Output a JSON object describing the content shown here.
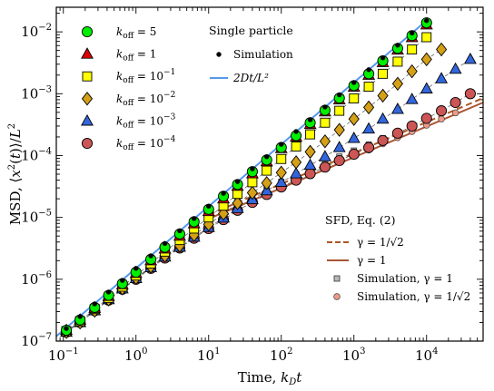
{
  "chart_data": {
    "type": "scatter",
    "x_scale": "log",
    "y_scale": "log",
    "xlim": [
      0.08,
      60000
    ],
    "ylim": [
      1e-07,
      0.025
    ],
    "xlabel": "Time, k_D t",
    "ylabel": "MSD, ⟨x²(t)⟩/L²",
    "x_ticks": [
      {
        "base": "10",
        "exp": "−1",
        "value": 0.1
      },
      {
        "base": "10",
        "exp": "0",
        "value": 1
      },
      {
        "base": "10",
        "exp": "1",
        "value": 10
      },
      {
        "base": "10",
        "exp": "2",
        "value": 100
      },
      {
        "base": "10",
        "exp": "3",
        "value": 1000
      },
      {
        "base": "10",
        "exp": "4",
        "value": 10000
      }
    ],
    "y_ticks": [
      {
        "base": "10",
        "exp": "−7",
        "value": 1e-07
      },
      {
        "base": "10",
        "exp": "−6",
        "value": 1e-06
      },
      {
        "base": "10",
        "exp": "−5",
        "value": 1e-05
      },
      {
        "base": "10",
        "exp": "−4",
        "value": 0.0001
      },
      {
        "base": "10",
        "exp": "−3",
        "value": 0.001
      },
      {
        "base": "10",
        "exp": "−2",
        "value": 0.01
      }
    ],
    "legend_left": [
      {
        "label": "k_off = 5"
      },
      {
        "label": "k_off = 1"
      },
      {
        "label": "k_off = 10⁻¹"
      },
      {
        "label": "k_off = 10⁻²"
      },
      {
        "label": "k_off = 10⁻³"
      },
      {
        "label": "k_off = 10⁻⁴"
      }
    ],
    "legend_single": {
      "header": "Single particle",
      "items": [
        {
          "label": "Simulation"
        },
        {
          "label": "2Dt/L²"
        }
      ]
    },
    "legend_sfd": {
      "header": "SFD, Eq. (2)",
      "items": [
        {
          "label": "γ = 1/√2"
        },
        {
          "label": "γ = 1"
        },
        {
          "label": "Simulation, γ = 1"
        },
        {
          "label": "Simulation, γ = 1/√2"
        }
      ]
    },
    "colors": {
      "koff_5": "#00ee00",
      "koff_1": "#dd0000",
      "koff_1e-1": "#ffff00",
      "koff_1e-2": "#d4a017",
      "koff_1e-3": "#3366dd",
      "koff_1e-4": "#cc5555",
      "single_sim": "#000000",
      "single_line": "#5599ee",
      "sfd_dashed": "#aa5522",
      "sfd_solid": "#aa5533",
      "sim_gamma1": "#b8b8b8",
      "sim_gamma_rt2": "#ee9988"
    },
    "series": [
      {
        "key": "koff_5",
        "marker": "circle",
        "points": [
          [
            0.11,
            1.5e-07
          ],
          [
            0.17,
            2.2e-07
          ],
          [
            0.27,
            3.5e-07
          ],
          [
            0.42,
            5.5e-07
          ],
          [
            0.65,
            8.5e-07
          ],
          [
            1,
            1.3e-06
          ],
          [
            1.6,
            2.1e-06
          ],
          [
            2.5,
            3.3e-06
          ],
          [
            4,
            5.4e-06
          ],
          [
            6.3,
            8.5e-06
          ],
          [
            10,
            1.35e-05
          ],
          [
            16,
            2.2e-05
          ],
          [
            25,
            3.4e-05
          ],
          [
            40,
            5.5e-05
          ],
          [
            63,
            8.5e-05
          ],
          [
            100,
            0.000135
          ],
          [
            160,
            0.00021
          ],
          [
            250,
            0.00034
          ],
          [
            400,
            0.00054
          ],
          [
            630,
            0.00085
          ],
          [
            1000,
            0.00135
          ],
          [
            1600,
            0.0021
          ],
          [
            2500,
            0.0034
          ],
          [
            4000,
            0.0054
          ],
          [
            6300,
            0.0087
          ],
          [
            10000,
            0.014
          ]
        ]
      },
      {
        "key": "koff_1",
        "marker": "triangle",
        "points": [
          [
            0.11,
            1.5e-07
          ],
          [
            0.17,
            2.2e-07
          ],
          [
            0.27,
            3.4e-07
          ],
          [
            0.42,
            5.3e-07
          ],
          [
            0.65,
            8.2e-07
          ],
          [
            1,
            1.25e-06
          ],
          [
            1.6,
            2e-06
          ],
          [
            2.5,
            3.1e-06
          ],
          [
            4,
            5e-06
          ],
          [
            6.3,
            7.9e-06
          ],
          [
            10,
            1.25e-05
          ],
          [
            16,
            2e-05
          ],
          [
            25,
            3.2e-05
          ],
          [
            40,
            5.1e-05
          ],
          [
            63,
            8e-05
          ],
          [
            100,
            0.00013
          ],
          [
            160,
            0.0002
          ],
          [
            250,
            0.00032
          ],
          [
            400,
            0.00051
          ],
          [
            630,
            0.0008
          ],
          [
            1000,
            0.00128
          ],
          [
            1600,
            0.002
          ],
          [
            2500,
            0.0032
          ],
          [
            4000,
            0.0051
          ],
          [
            6300,
            0.0081
          ],
          [
            10000,
            0.013
          ]
        ]
      },
      {
        "key": "koff_1e-1",
        "marker": "square",
        "points": [
          [
            0.11,
            1.45e-07
          ],
          [
            0.17,
            2.1e-07
          ],
          [
            0.27,
            3.3e-07
          ],
          [
            0.42,
            5e-07
          ],
          [
            0.65,
            7.6e-07
          ],
          [
            1,
            1.15e-06
          ],
          [
            1.6,
            1.8e-06
          ],
          [
            2.5,
            2.8e-06
          ],
          [
            4,
            4.3e-06
          ],
          [
            6.3,
            6.6e-06
          ],
          [
            10,
            1e-05
          ],
          [
            16,
            1.55e-05
          ],
          [
            25,
            2.4e-05
          ],
          [
            40,
            3.7e-05
          ],
          [
            63,
            5.7e-05
          ],
          [
            100,
            8.8e-05
          ],
          [
            160,
            0.00014
          ],
          [
            250,
            0.00022
          ],
          [
            400,
            0.00034
          ],
          [
            630,
            0.00053
          ],
          [
            1000,
            0.00084
          ],
          [
            1600,
            0.0013
          ],
          [
            2500,
            0.0021
          ],
          [
            4000,
            0.0033
          ],
          [
            6300,
            0.0052
          ],
          [
            10000,
            0.0082
          ]
        ]
      },
      {
        "key": "koff_1e-2",
        "marker": "diamond",
        "points": [
          [
            0.11,
            1.4e-07
          ],
          [
            0.17,
            2e-07
          ],
          [
            0.27,
            3.1e-07
          ],
          [
            0.42,
            4.7e-07
          ],
          [
            0.65,
            7.1e-07
          ],
          [
            1,
            1.05e-06
          ],
          [
            1.6,
            1.6e-06
          ],
          [
            2.5,
            2.4e-06
          ],
          [
            4,
            3.5e-06
          ],
          [
            6.3,
            5.2e-06
          ],
          [
            10,
            7.7e-06
          ],
          [
            16,
            1.15e-05
          ],
          [
            25,
            1.7e-05
          ],
          [
            40,
            2.5e-05
          ],
          [
            63,
            3.6e-05
          ],
          [
            100,
            5.3e-05
          ],
          [
            160,
            7.8e-05
          ],
          [
            250,
            0.000115
          ],
          [
            400,
            0.00017
          ],
          [
            630,
            0.00026
          ],
          [
            1000,
            0.00039
          ],
          [
            1600,
            0.0006
          ],
          [
            2500,
            0.00093
          ],
          [
            4000,
            0.00145
          ],
          [
            6300,
            0.0023
          ],
          [
            10000,
            0.0036
          ],
          [
            16000,
            0.0052
          ]
        ]
      },
      {
        "key": "koff_1e-3",
        "marker": "triangle",
        "points": [
          [
            0.11,
            1.4e-07
          ],
          [
            0.17,
            2e-07
          ],
          [
            0.27,
            3.1e-07
          ],
          [
            0.42,
            4.7e-07
          ],
          [
            0.65,
            7e-07
          ],
          [
            1,
            1.03e-06
          ],
          [
            1.6,
            1.55e-06
          ],
          [
            2.5,
            2.3e-06
          ],
          [
            4,
            3.3e-06
          ],
          [
            6.3,
            4.8e-06
          ],
          [
            10,
            6.9e-06
          ],
          [
            16,
            9.8e-06
          ],
          [
            25,
            1.4e-05
          ],
          [
            40,
            1.95e-05
          ],
          [
            63,
            2.7e-05
          ],
          [
            100,
            3.7e-05
          ],
          [
            160,
            5.1e-05
          ],
          [
            250,
            7e-05
          ],
          [
            400,
            9.6e-05
          ],
          [
            630,
            0.000135
          ],
          [
            1000,
            0.00019
          ],
          [
            1600,
            0.00027
          ],
          [
            2500,
            0.00039
          ],
          [
            4000,
            0.00056
          ],
          [
            6300,
            0.00081
          ],
          [
            10000,
            0.0012
          ],
          [
            16000,
            0.00175
          ],
          [
            25000,
            0.0025
          ],
          [
            40000,
            0.0036
          ]
        ]
      },
      {
        "key": "koff_1e-4",
        "marker": "circle",
        "points": [
          [
            0.11,
            1.4e-07
          ],
          [
            0.17,
            2e-07
          ],
          [
            0.27,
            3.1e-07
          ],
          [
            0.42,
            4.6e-07
          ],
          [
            0.65,
            6.9e-07
          ],
          [
            1,
            1e-06
          ],
          [
            1.6,
            1.5e-06
          ],
          [
            2.5,
            2.2e-06
          ],
          [
            4,
            3.2e-06
          ],
          [
            6.3,
            4.6e-06
          ],
          [
            10,
            6.6e-06
          ],
          [
            16,
            9.2e-06
          ],
          [
            25,
            1.3e-05
          ],
          [
            40,
            1.75e-05
          ],
          [
            63,
            2.35e-05
          ],
          [
            100,
            3.1e-05
          ],
          [
            160,
            4e-05
          ],
          [
            250,
            5.1e-05
          ],
          [
            400,
            6.5e-05
          ],
          [
            630,
            8.3e-05
          ],
          [
            1000,
            0.000105
          ],
          [
            1600,
            0.000135
          ],
          [
            2500,
            0.000175
          ],
          [
            4000,
            0.00023
          ],
          [
            6300,
            0.0003
          ],
          [
            10000,
            0.0004
          ],
          [
            16000,
            0.00053
          ],
          [
            25000,
            0.00072
          ],
          [
            40000,
            0.001
          ]
        ]
      },
      {
        "key": "single_sim",
        "marker": "dot",
        "points": [
          [
            0.11,
            1.6e-07
          ],
          [
            0.17,
            2.5e-07
          ],
          [
            0.27,
            4e-07
          ],
          [
            0.42,
            6.2e-07
          ],
          [
            0.65,
            9.6e-07
          ],
          [
            1,
            1.5e-06
          ],
          [
            1.6,
            2.4e-06
          ],
          [
            2.5,
            3.8e-06
          ],
          [
            4,
            6.1e-06
          ],
          [
            6.3,
            9.6e-06
          ],
          [
            10,
            1.52e-05
          ],
          [
            16,
            2.45e-05
          ],
          [
            25,
            3.8e-05
          ],
          [
            40,
            6.1e-05
          ],
          [
            63,
            9.6e-05
          ],
          [
            100,
            0.000152
          ],
          [
            160,
            0.000245
          ],
          [
            250,
            0.00038
          ],
          [
            400,
            0.00061
          ],
          [
            630,
            0.00096
          ],
          [
            1000,
            0.00152
          ],
          [
            1600,
            0.00245
          ],
          [
            2500,
            0.0038
          ],
          [
            4000,
            0.0061
          ],
          [
            6300,
            0.0096
          ],
          [
            10000,
            0.0152
          ]
        ]
      },
      {
        "key": "sim_gamma1",
        "marker": "smallsquare",
        "points": [
          [
            16,
            1.45e-05
          ],
          [
            25,
            1.85e-05
          ],
          [
            40,
            2.35e-05
          ],
          [
            63,
            2.95e-05
          ],
          [
            100,
            3.75e-05
          ],
          [
            160,
            4.75e-05
          ],
          [
            250,
            6e-05
          ],
          [
            400,
            7.6e-05
          ],
          [
            630,
            9.6e-05
          ],
          [
            1000,
            0.00012
          ],
          [
            1600,
            0.00015
          ],
          [
            2500,
            0.00019
          ],
          [
            4000,
            0.00024
          ],
          [
            6300,
            0.0003
          ],
          [
            10000,
            0.00038
          ]
        ]
      },
      {
        "key": "sim_gamma_rt2",
        "marker": "smallcircle",
        "points": [
          [
            0.11,
            1.5e-07
          ],
          [
            0.17,
            2.3e-07
          ],
          [
            0.27,
            3.6e-07
          ],
          [
            0.42,
            5.6e-07
          ],
          [
            0.65,
            8.7e-07
          ],
          [
            1,
            1.3e-06
          ],
          [
            1.6,
            2e-06
          ],
          [
            2.5,
            3e-06
          ],
          [
            4,
            4.5e-06
          ],
          [
            6.3,
            6.5e-06
          ],
          [
            10,
            9.2e-06
          ],
          [
            16,
            1.25e-05
          ],
          [
            25,
            1.6e-05
          ],
          [
            40,
            2e-05
          ],
          [
            63,
            2.5e-05
          ],
          [
            100,
            3.1e-05
          ],
          [
            160,
            3.9e-05
          ],
          [
            250,
            4.9e-05
          ],
          [
            400,
            6.2e-05
          ],
          [
            630,
            7.8e-05
          ],
          [
            1000,
            9.8e-05
          ],
          [
            1600,
            0.000123
          ],
          [
            2500,
            0.000155
          ],
          [
            4000,
            0.000195
          ],
          [
            6300,
            0.000245
          ],
          [
            10000,
            0.00031
          ],
          [
            16000,
            0.00039
          ],
          [
            25000,
            0.00049
          ]
        ]
      }
    ],
    "lines": [
      {
        "key": "single_line",
        "style": "solid",
        "points": [
          [
            0.08,
            1.2e-07
          ],
          [
            10500,
            0.016
          ]
        ]
      },
      {
        "key": "sfd_dashed",
        "style": "dashed",
        "points": [
          [
            10,
            1.1e-05
          ],
          [
            60000,
            0.00085
          ]
        ]
      },
      {
        "key": "sfd_solid",
        "style": "solid",
        "points": [
          [
            10,
            9.5e-06
          ],
          [
            60000,
            0.00072
          ]
        ]
      }
    ]
  }
}
